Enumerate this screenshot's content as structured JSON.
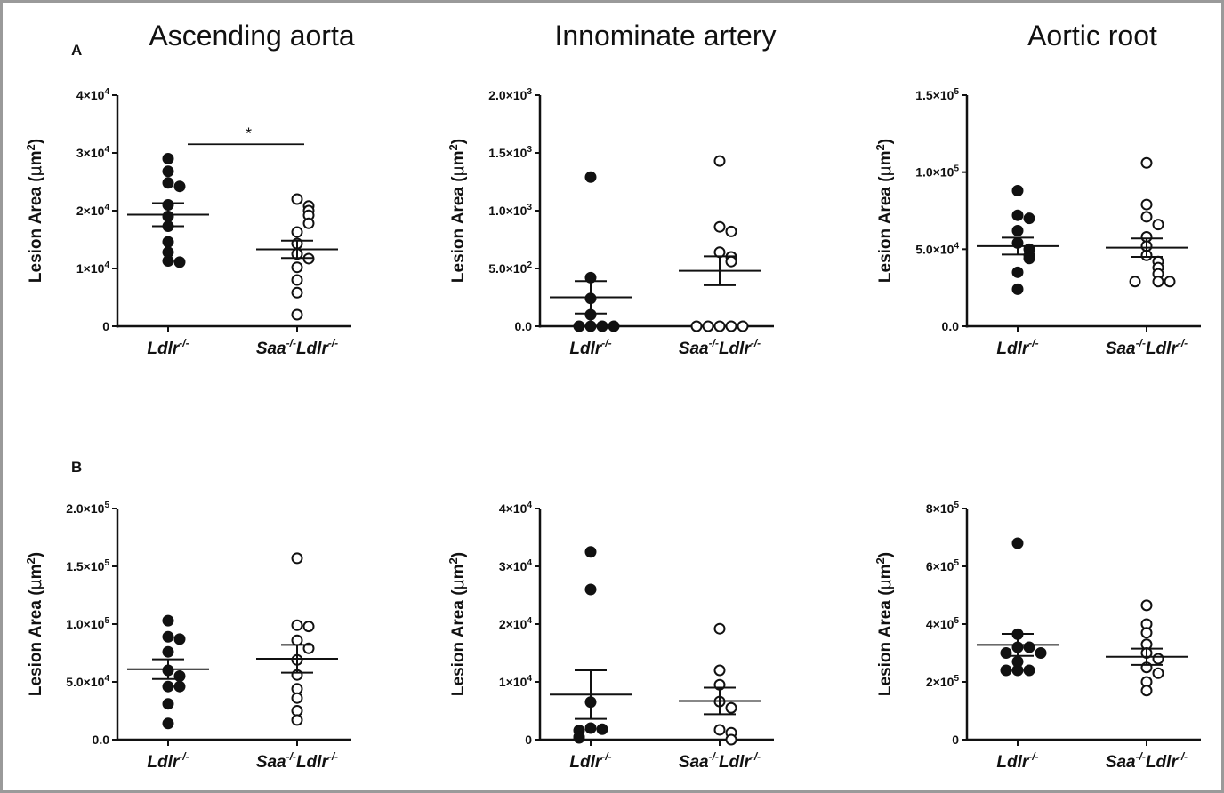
{
  "column_titles": [
    "Ascending aorta",
    "Innominate artery",
    "Aortic root"
  ],
  "row_labels": [
    "A",
    "B"
  ],
  "chart_data": [
    {
      "type": "scatter",
      "panel": "A",
      "column": "Ascending aorta",
      "categories": [
        "Ldlr-/-",
        "Saa-/-Ldlr-/-"
      ],
      "category_display": [
        {
          "base": "Ldlr",
          "sup": "-/-"
        },
        {
          "base": "Saa",
          "sup": "-/-",
          "base2": "Ldlr",
          "sup2": "-/-"
        }
      ],
      "ylabel": {
        "base": "Lesion Area (",
        "mu": "μ",
        "unit": "m",
        "sup": "2",
        "close": ")"
      },
      "ylim": [
        0,
        40000
      ],
      "yticks": [
        {
          "value": 0,
          "mant": "0"
        },
        {
          "value": 10000,
          "mant": "1×10",
          "exp": "4"
        },
        {
          "value": 20000,
          "mant": "2×10",
          "exp": "4"
        },
        {
          "value": 30000,
          "mant": "3×10",
          "exp": "4"
        },
        {
          "value": 40000,
          "mant": "4×10",
          "exp": "4"
        }
      ],
      "series": [
        {
          "name": "Ldlr-/-",
          "filled": true,
          "values": [
            29000,
            26800,
            24800,
            24200,
            21000,
            19000,
            17300,
            14600,
            12800,
            11300,
            11100
          ],
          "mean": 19300,
          "sem": 2000
        },
        {
          "name": "Saa-/-Ldlr-/-",
          "filled": false,
          "values": [
            22000,
            20800,
            20000,
            19200,
            17800,
            16300,
            14300,
            12500,
            11700,
            10200,
            8000,
            5800,
            2000
          ],
          "mean": 13300,
          "sem": 1500
        }
      ],
      "annotation": {
        "text": "*",
        "y": 31500
      }
    },
    {
      "type": "scatter",
      "panel": "A",
      "column": "Innominate artery",
      "categories": [
        "Ldlr-/-",
        "Saa-/-Ldlr-/-"
      ],
      "category_display": [
        {
          "base": "Ldlr",
          "sup": "-/-"
        },
        {
          "base": "Saa",
          "sup": "-/-",
          "base2": "Ldlr",
          "sup2": "-/-"
        }
      ],
      "ylabel": {
        "base": "Lesion Area (",
        "mu": "μ",
        "unit": "m",
        "sup": "2",
        "close": ")"
      },
      "ylim": [
        0,
        2000
      ],
      "yticks": [
        {
          "value": 0,
          "mant": "0.0"
        },
        {
          "value": 500,
          "mant": "5.0×10",
          "exp": "2"
        },
        {
          "value": 1000,
          "mant": "1.0×10",
          "exp": "3"
        },
        {
          "value": 1500,
          "mant": "1.5×10",
          "exp": "3"
        },
        {
          "value": 2000,
          "mant": "2.0×10",
          "exp": "3"
        }
      ],
      "series": [
        {
          "name": "Ldlr-/-",
          "filled": true,
          "values": [
            1290,
            420,
            240,
            100,
            0,
            0,
            0,
            0
          ],
          "mean": 250,
          "sem": 140
        },
        {
          "name": "Saa-/-Ldlr-/-",
          "filled": false,
          "values": [
            1430,
            860,
            820,
            640,
            600,
            560,
            0,
            0,
            0,
            0,
            0
          ],
          "mean": 480,
          "sem": 125
        }
      ]
    },
    {
      "type": "scatter",
      "panel": "A",
      "column": "Aortic root",
      "categories": [
        "Ldlr-/-",
        "Saa-/-Ldlr-/-"
      ],
      "category_display": [
        {
          "base": "Ldlr",
          "sup": "-/-"
        },
        {
          "base": "Saa",
          "sup": "-/-",
          "base2": "Ldlr",
          "sup2": "-/-"
        }
      ],
      "ylabel": {
        "base": "Lesion Area (",
        "mu": "μ",
        "unit": "m",
        "sup": "2",
        "close": ")"
      },
      "ylim": [
        0,
        150000
      ],
      "yticks": [
        {
          "value": 0,
          "mant": "0.0"
        },
        {
          "value": 50000,
          "mant": "5.0×10",
          "exp": "4"
        },
        {
          "value": 100000,
          "mant": "1.0×10",
          "exp": "5"
        },
        {
          "value": 150000,
          "mant": "1.5×10",
          "exp": "5"
        }
      ],
      "series": [
        {
          "name": "Ldlr-/-",
          "filled": true,
          "values": [
            88000,
            72000,
            70000,
            62000,
            54000,
            50000,
            46000,
            44000,
            35000,
            24000
          ],
          "mean": 52000,
          "sem": 5500
        },
        {
          "name": "Saa-/-Ldlr-/-",
          "filled": false,
          "values": [
            106000,
            79000,
            71000,
            66000,
            58000,
            52000,
            46000,
            42000,
            38000,
            34000,
            29000,
            29000,
            29000
          ],
          "mean": 51000,
          "sem": 6000
        }
      ]
    },
    {
      "type": "scatter",
      "panel": "B",
      "column": "Ascending aorta",
      "categories": [
        "Ldlr-/-",
        "Saa-/-Ldlr-/-"
      ],
      "category_display": [
        {
          "base": "Ldlr",
          "sup": "-/-"
        },
        {
          "base": "Saa",
          "sup": "-/-",
          "base2": "Ldlr",
          "sup2": "-/-"
        }
      ],
      "ylabel": {
        "base": "Lesion Area (",
        "mu": "μ",
        "unit": "m",
        "sup": "2",
        "close": ")"
      },
      "ylim": [
        0,
        200000
      ],
      "yticks": [
        {
          "value": 0,
          "mant": "0.0"
        },
        {
          "value": 50000,
          "mant": "5.0×10",
          "exp": "4"
        },
        {
          "value": 100000,
          "mant": "1.0×10",
          "exp": "5"
        },
        {
          "value": 150000,
          "mant": "1.5×10",
          "exp": "5"
        },
        {
          "value": 200000,
          "mant": "2.0×10",
          "exp": "5"
        }
      ],
      "series": [
        {
          "name": "Ldlr-/-",
          "filled": true,
          "values": [
            103000,
            89000,
            87000,
            76000,
            60000,
            55000,
            46000,
            46000,
            31000,
            14000
          ],
          "mean": 61000,
          "sem": 8500
        },
        {
          "name": "Saa-/-Ldlr-/-",
          "filled": false,
          "values": [
            157000,
            99000,
            98000,
            86000,
            79000,
            69000,
            56000,
            44000,
            36000,
            25000,
            17000
          ],
          "mean": 70000,
          "sem": 12000
        }
      ]
    },
    {
      "type": "scatter",
      "panel": "B",
      "column": "Innominate artery",
      "categories": [
        "Ldlr-/-",
        "Saa-/-Ldlr-/-"
      ],
      "category_display": [
        {
          "base": "Ldlr",
          "sup": "-/-"
        },
        {
          "base": "Saa",
          "sup": "-/-",
          "base2": "Ldlr",
          "sup2": "-/-"
        }
      ],
      "ylabel": {
        "base": "Lesion Area (",
        "mu": "μ",
        "unit": "m",
        "sup": "2",
        "close": ")"
      },
      "ylim": [
        0,
        40000
      ],
      "yticks": [
        {
          "value": 0,
          "mant": "0"
        },
        {
          "value": 10000,
          "mant": "1×10",
          "exp": "4"
        },
        {
          "value": 20000,
          "mant": "2×10",
          "exp": "4"
        },
        {
          "value": 30000,
          "mant": "3×10",
          "exp": "4"
        },
        {
          "value": 40000,
          "mant": "4×10",
          "exp": "4"
        }
      ],
      "series": [
        {
          "name": "Ldlr-/-",
          "filled": true,
          "values": [
            32500,
            26000,
            6500,
            2000,
            1800,
            1600,
            500,
            300
          ],
          "mean": 7800,
          "sem": 4200
        },
        {
          "name": "Saa-/-Ldlr-/-",
          "filled": false,
          "values": [
            19200,
            12000,
            9500,
            6600,
            5500,
            1700,
            1200,
            0
          ],
          "mean": 6700,
          "sem": 2300
        }
      ]
    },
    {
      "type": "scatter",
      "panel": "B",
      "column": "Aortic root",
      "categories": [
        "Ldlr-/-",
        "Saa-/-Ldlr-/-"
      ],
      "category_display": [
        {
          "base": "Ldlr",
          "sup": "-/-"
        },
        {
          "base": "Saa",
          "sup": "-/-",
          "base2": "Ldlr",
          "sup2": "-/-"
        }
      ],
      "ylabel": {
        "base": "Lesion Area (",
        "mu": "μ",
        "unit": "m",
        "sup": "2",
        "close": ")"
      },
      "ylim": [
        0,
        800000
      ],
      "yticks": [
        {
          "value": 0,
          "mant": "0"
        },
        {
          "value": 200000,
          "mant": "2×10",
          "exp": "5"
        },
        {
          "value": 400000,
          "mant": "4×10",
          "exp": "5"
        },
        {
          "value": 600000,
          "mant": "6×10",
          "exp": "5"
        },
        {
          "value": 800000,
          "mant": "8×10",
          "exp": "5"
        }
      ],
      "series": [
        {
          "name": "Ldlr-/-",
          "filled": true,
          "values": [
            680000,
            365000,
            320000,
            320000,
            300000,
            300000,
            270000,
            240000,
            240000,
            240000
          ],
          "mean": 328000,
          "sem": 38000
        },
        {
          "name": "Saa-/-Ldlr-/-",
          "filled": false,
          "values": [
            465000,
            400000,
            370000,
            330000,
            300000,
            280000,
            250000,
            230000,
            200000,
            170000
          ],
          "mean": 287000,
          "sem": 28000
        }
      ]
    }
  ]
}
